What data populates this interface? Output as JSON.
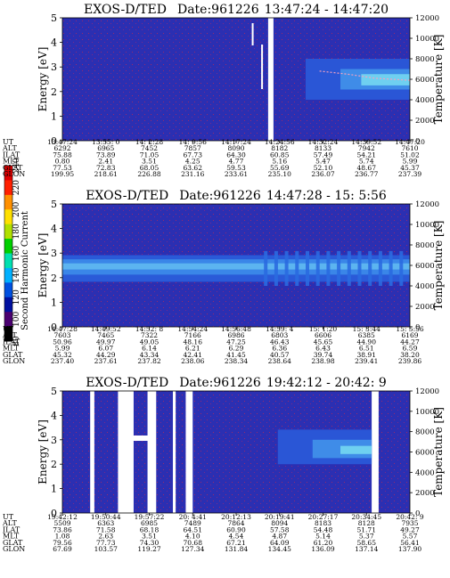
{
  "chart_data": [
    {
      "type": "heatmap",
      "title": "EXOS-D/TED",
      "date_label": "Date:961226",
      "time_range": "13:47:24 - 14:47:20",
      "ylabel_left": "Energy [eV]",
      "ylabel_right": "Temperature [K]",
      "ylim_left": [
        0,
        5
      ],
      "ylim_right": [
        0,
        12000
      ],
      "yticks_left": [
        "0",
        "1",
        "2",
        "3",
        "4",
        "5"
      ],
      "yticks_right": [
        "0",
        "2000",
        "4000",
        "6000",
        "8000",
        "10000",
        "12000"
      ],
      "row_labels": [
        "UT",
        "ALT",
        "ILAT",
        "MLT",
        "GLAT",
        "GLON"
      ],
      "columns": [
        [
          "13:47:24",
          "6292",
          "75.88",
          "0.80",
          "77.53",
          "199.95"
        ],
        [
          "13:55: 0",
          "6965",
          "73.89",
          "2.41",
          "72.83",
          "218.61"
        ],
        [
          "14: 2:28",
          "7452",
          "71.05",
          "3.51",
          "68.05",
          "226.88"
        ],
        [
          "14: 9:56",
          "7857",
          "67.73",
          "4.25",
          "63.62",
          "231.16"
        ],
        [
          "14:17:24",
          "8090",
          "64.30",
          "4.77",
          "59.53",
          "233.61"
        ],
        [
          "14:24:56",
          "8182",
          "60.85",
          "5.16",
          "55.69",
          "235.10"
        ],
        [
          "14:32:24",
          "8133",
          "57.49",
          "5.47",
          "52.10",
          "236.07"
        ],
        [
          "14:39:52",
          "7942",
          "54.21",
          "5.74",
          "48.67",
          "236.77"
        ],
        [
          "14:47:20",
          "7610",
          "51.02",
          "5.99",
          "45.37",
          "237.39"
        ]
      ],
      "temperature_trace": [
        {
          "t": 0.74,
          "K": 6800
        },
        {
          "t": 0.82,
          "K": 6500
        },
        {
          "t": 0.9,
          "K": 6100
        },
        {
          "t": 1.0,
          "K": 5900
        }
      ]
    },
    {
      "type": "heatmap",
      "title": "EXOS-D/TED",
      "date_label": "Date:961226",
      "time_range": "14:47:28 - 15: 5:56",
      "ylabel_left": "Energy [eV]",
      "ylabel_right": "Temperature [K]",
      "ylim_left": [
        0,
        5
      ],
      "ylim_right": [
        0,
        12000
      ],
      "yticks_left": [
        "0",
        "1",
        "2",
        "3",
        "4",
        "5"
      ],
      "yticks_right": [
        "0",
        "2000",
        "4000",
        "6000",
        "8000",
        "10000",
        "12000"
      ],
      "row_labels": [
        "UT",
        "ALT",
        "ILAT",
        "MLT",
        "GLAT",
        "GLON"
      ],
      "columns": [
        [
          "14:47:28",
          "7603",
          "50.96",
          "5.99",
          "45.32",
          "237.40"
        ],
        [
          "14:49:52",
          "7465",
          "49.97",
          "6.07",
          "44.29",
          "237.61"
        ],
        [
          "14:52: 8",
          "7322",
          "49.05",
          "6.14",
          "43.34",
          "237.82"
        ],
        [
          "14:54:24",
          "7166",
          "48.16",
          "6.21",
          "42.41",
          "238.06"
        ],
        [
          "14:56:48",
          "6986",
          "47.25",
          "6.29",
          "41.45",
          "238.34"
        ],
        [
          "14:59: 4",
          "6803",
          "46.43",
          "6.36",
          "40.57",
          "238.64"
        ],
        [
          "15: 1:20",
          "6606",
          "45.65",
          "6.43",
          "39.74",
          "238.98"
        ],
        [
          "15: 3:44",
          "6385",
          "44.90",
          "6.51",
          "38.91",
          "239.41"
        ],
        [
          "15: 5:56",
          "6169",
          "44.27",
          "6.59",
          "38.20",
          "239.86"
        ]
      ]
    },
    {
      "type": "heatmap",
      "title": "EXOS-D/TED",
      "date_label": "Date:961226",
      "time_range": "19:42:12 - 20:42: 9",
      "ylabel_left": "Energy [eV]",
      "ylabel_right": "Temperature [K]",
      "ylim_left": [
        0,
        5
      ],
      "ylim_right": [
        0,
        12000
      ],
      "yticks_left": [
        "0",
        "1",
        "2",
        "3",
        "4",
        "5"
      ],
      "yticks_right": [
        "0",
        "2000",
        "4000",
        "6000",
        "8000",
        "10000",
        "12000"
      ],
      "row_labels": [
        "UT",
        "ALT",
        "ILAT",
        "MLT",
        "GLAT",
        "GLON"
      ],
      "columns": [
        [
          "19:42:12",
          "5509",
          "73.86",
          "1.08",
          "79.56",
          "67.69"
        ],
        [
          "19:50:44",
          "6363",
          "71.58",
          "2.63",
          "77.73",
          "103.57"
        ],
        [
          "19:57:22",
          "6985",
          "68.18",
          "3.51",
          "74.30",
          "119.27"
        ],
        [
          "20: 4:41",
          "7489",
          "64.51",
          "4.10",
          "70.68",
          "127.34"
        ],
        [
          "20:12:13",
          "7864",
          "60.90",
          "4.54",
          "67.21",
          "131.84"
        ],
        [
          "20:19:41",
          "8094",
          "57.58",
          "4.87",
          "64.09",
          "134.45"
        ],
        [
          "20:27:17",
          "8183",
          "54.48",
          "5.14",
          "61.20",
          "136.09"
        ],
        [
          "20:34:45",
          "8128",
          "51.71",
          "5.37",
          "58.65",
          "137.14"
        ],
        [
          "20:42: 9",
          "7935",
          "49.27",
          "5.57",
          "56.41",
          "137.90"
        ]
      ]
    }
  ],
  "colorbar": {
    "label": "Second Harmonic Current",
    "ticks": [
      "80",
      "100",
      "120",
      "140",
      "160",
      "180",
      "200",
      "220",
      "240"
    ],
    "colors": [
      "#000000",
      "#4a0070",
      "#0010a0",
      "#0050e0",
      "#00b0ff",
      "#00e0b0",
      "#00d000",
      "#b0e000",
      "#ffe000",
      "#ff9000",
      "#ff2000",
      "#e00000"
    ]
  }
}
